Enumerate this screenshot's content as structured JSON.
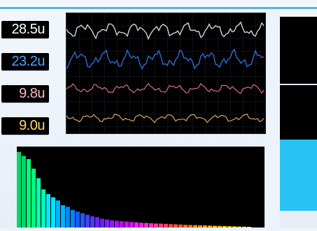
{
  "channels": [
    {
      "label": "28.5u",
      "color": "#ffffff",
      "trace_color": "#cfd3d8"
    },
    {
      "label": "23.2u",
      "color": "#4aa3ff",
      "trace_color": "#2f6bd6"
    },
    {
      "label": "9.8u",
      "color": "#ffb3c6",
      "trace_color": "#d96a8f"
    },
    {
      "label": "9.0u",
      "color": "#ffd76a",
      "trace_color": "#d6a65a"
    }
  ],
  "colors": {
    "accent": "#57b2e8",
    "right_bar": "#29c3f3",
    "panel": "#000000"
  },
  "spectrum": {
    "bars": [
      0.95,
      0.9,
      0.86,
      0.74,
      0.62,
      0.48,
      0.42,
      0.38,
      0.34,
      0.28,
      0.26,
      0.22,
      0.2,
      0.18,
      0.16,
      0.14,
      0.13,
      0.11,
      0.1,
      0.09,
      0.085,
      0.08,
      0.075,
      0.07,
      0.065,
      0.06,
      0.058,
      0.054,
      0.05,
      0.048,
      0.046,
      0.042,
      0.04,
      0.037,
      0.034,
      0.032,
      0.03,
      0.028,
      0.026,
      0.024,
      0.022,
      0.02,
      0.018,
      0.016,
      0.014,
      0.012,
      0.01,
      0.008
    ]
  }
}
